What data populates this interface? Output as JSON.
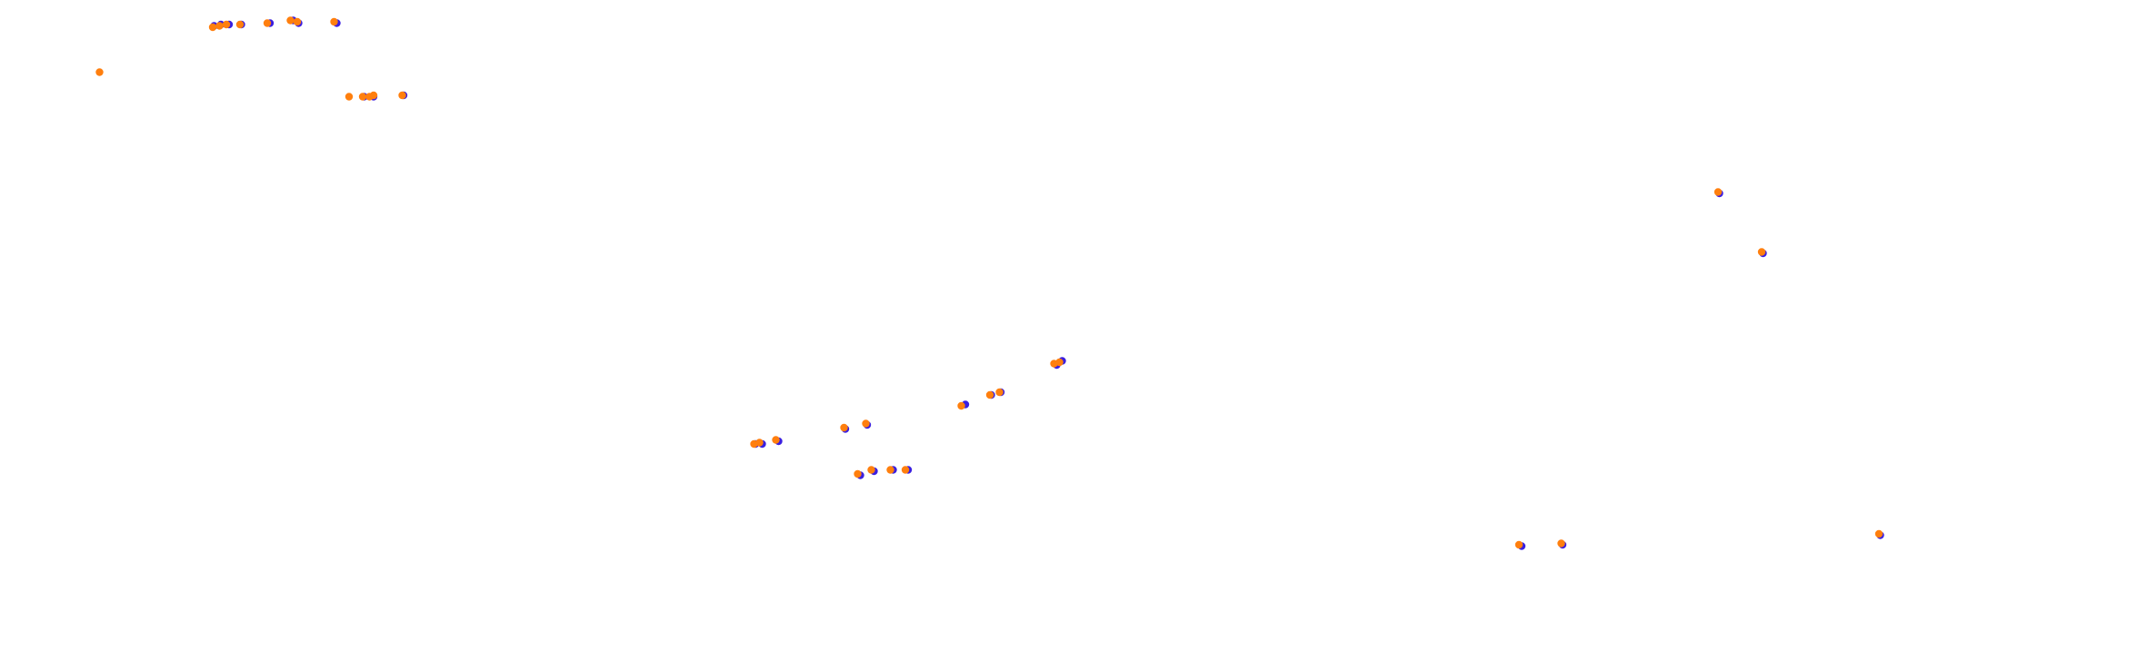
{
  "chart_data": {
    "type": "scatter",
    "title": "",
    "xlabel": "",
    "ylabel": "",
    "xlim": [
      0,
      1568
    ],
    "ylim": [
      0,
      478
    ],
    "grid": false,
    "legend": "none",
    "series": [
      {
        "color": "#3a1fe0",
        "points": [
          [
            157,
            19
          ],
          [
            162,
            18
          ],
          [
            168,
            18
          ],
          [
            177,
            18
          ],
          [
            198,
            17
          ],
          [
            215,
            15
          ],
          [
            219,
            17
          ],
          [
            247,
            17
          ],
          [
            267,
            71
          ],
          [
            274,
            71
          ],
          [
            296,
            70
          ],
          [
            1261,
            142
          ],
          [
            1293,
            186
          ],
          [
            779,
            265
          ],
          [
            775,
            268
          ],
          [
            734,
            288
          ],
          [
            727,
            290
          ],
          [
            708,
            297
          ],
          [
            636,
            312
          ],
          [
            620,
            315
          ],
          [
            571,
            324
          ],
          [
            559,
            326
          ],
          [
            554,
            326
          ],
          [
            666,
            345
          ],
          [
            655,
            345
          ],
          [
            641,
            346
          ],
          [
            631,
            349
          ],
          [
            1146,
            400
          ],
          [
            1116,
            401
          ],
          [
            1379,
            393
          ]
        ]
      },
      {
        "color": "#ff7f0e",
        "points": [
          [
            73,
            53
          ],
          [
            156,
            20
          ],
          [
            161,
            19
          ],
          [
            166,
            18
          ],
          [
            176,
            18
          ],
          [
            196,
            17
          ],
          [
            213,
            15
          ],
          [
            218,
            16
          ],
          [
            245,
            16
          ],
          [
            256,
            71
          ],
          [
            266,
            71
          ],
          [
            271,
            71
          ],
          [
            274,
            70
          ],
          [
            295,
            70
          ],
          [
            1260,
            141
          ],
          [
            1292,
            185
          ],
          [
            777,
            266
          ],
          [
            773,
            267
          ],
          [
            733,
            288
          ],
          [
            726,
            290
          ],
          [
            705,
            298
          ],
          [
            635,
            311
          ],
          [
            619,
            314
          ],
          [
            569,
            323
          ],
          [
            557,
            325
          ],
          [
            553,
            326
          ],
          [
            664,
            345
          ],
          [
            653,
            345
          ],
          [
            639,
            345
          ],
          [
            629,
            348
          ],
          [
            1145,
            399
          ],
          [
            1114,
            400
          ],
          [
            1378,
            392
          ]
        ]
      }
    ]
  }
}
